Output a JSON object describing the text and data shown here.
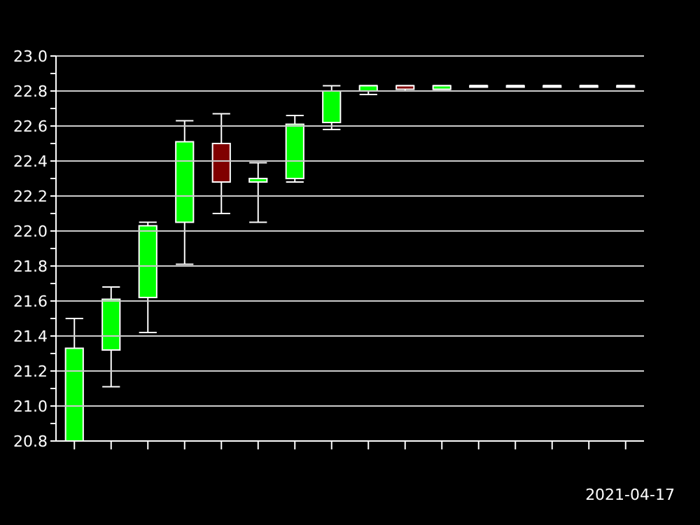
{
  "chart_data": {
    "type": "candlestick",
    "categories": [
      null,
      null,
      null,
      null,
      null,
      null,
      null,
      null,
      null,
      null,
      null,
      null,
      null,
      null,
      null,
      null
    ],
    "ohlc": [
      [
        20.8,
        21.5,
        20.8,
        21.33
      ],
      [
        21.32,
        21.68,
        21.11,
        21.61
      ],
      [
        21.62,
        22.05,
        21.42,
        22.03
      ],
      [
        22.05,
        22.63,
        21.81,
        22.51
      ],
      [
        22.5,
        22.67,
        22.1,
        22.28
      ],
      [
        22.28,
        22.39,
        22.05,
        22.3
      ],
      [
        22.3,
        22.66,
        22.28,
        22.61
      ],
      [
        22.62,
        22.83,
        22.58,
        22.8
      ],
      [
        22.8,
        22.83,
        22.78,
        22.83
      ],
      [
        22.83,
        22.83,
        22.8,
        22.81
      ],
      [
        22.81,
        22.83,
        22.81,
        22.83
      ],
      [
        22.83,
        22.83,
        22.83,
        22.83
      ],
      [
        22.83,
        22.83,
        22.83,
        22.83
      ],
      [
        22.83,
        22.83,
        22.83,
        22.83
      ],
      [
        22.83,
        22.83,
        22.83,
        22.83
      ],
      [
        22.83,
        22.83,
        22.83,
        22.83
      ]
    ],
    "colors": [
      "#00ff00",
      "#00ff00",
      "#00ff00",
      "#00ff00",
      "#800000",
      "#00ff00",
      "#00ff00",
      "#00ff00",
      "#00ff00",
      "#800000",
      "#00ff00",
      "#ffffff",
      "#ffffff",
      "#ffffff",
      "#ffffff",
      "#ffffff"
    ],
    "xlabel": "2021-04-17",
    "ylim": [
      20.8,
      23.0
    ],
    "yticks": [
      {
        "value": 20.8,
        "label": "20.8"
      },
      {
        "value": 20.9,
        "label": null
      },
      {
        "value": 21.0,
        "label": "21.0"
      },
      {
        "value": 21.1,
        "label": null
      },
      {
        "value": 21.2,
        "label": "21.2"
      },
      {
        "value": 21.3,
        "label": null
      },
      {
        "value": 21.4,
        "label": "21.4"
      },
      {
        "value": 21.5,
        "label": null
      },
      {
        "value": 21.6,
        "label": "21.6"
      },
      {
        "value": 21.7,
        "label": null
      },
      {
        "value": 21.8,
        "label": "21.8"
      },
      {
        "value": 21.9,
        "label": null
      },
      {
        "value": 22.0,
        "label": "22.0"
      },
      {
        "value": 22.1,
        "label": null
      },
      {
        "value": 22.2,
        "label": "22.2"
      },
      {
        "value": 22.3,
        "label": null
      },
      {
        "value": 22.4,
        "label": "22.4"
      },
      {
        "value": 22.5,
        "label": null
      },
      {
        "value": 22.6,
        "label": "22.6"
      },
      {
        "value": 22.7,
        "label": null
      },
      {
        "value": 22.8,
        "label": "22.8"
      },
      {
        "value": 22.9,
        "label": null
      },
      {
        "value": 23.0,
        "label": "23.0"
      }
    ],
    "grid": "y"
  }
}
